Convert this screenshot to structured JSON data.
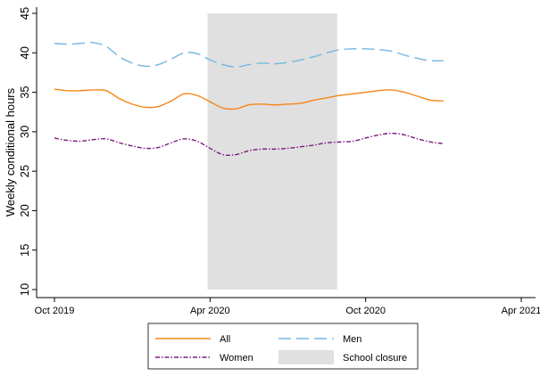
{
  "chart_data": {
    "type": "line",
    "xlabel": "",
    "ylabel": "Weekly conditional hours",
    "ylim": [
      10,
      45
    ],
    "yticks": [
      10,
      15,
      20,
      25,
      30,
      35,
      40,
      45
    ],
    "xlim": [
      "2019-10",
      "2021-04"
    ],
    "xticks": [
      {
        "value": "2019-10",
        "label": "Oct 2019"
      },
      {
        "value": "2020-04",
        "label": "Apr 2020"
      },
      {
        "value": "2020-10",
        "label": "Oct 2020"
      },
      {
        "value": "2021-04",
        "label": "Apr 2021"
      }
    ],
    "grid": false,
    "legend_position": "bottom",
    "shaded_region": {
      "name": "School closure",
      "start": "2020-03.9",
      "end": "2020-08.9",
      "color": "#e0e0e0"
    },
    "series": [
      {
        "name": "All",
        "color": "#f58518",
        "dash": "solid",
        "points": [
          [
            "2019-10",
            35.4
          ],
          [
            "2019-10.5",
            35.2
          ],
          [
            "2019-11",
            35.2
          ],
          [
            "2019-11.5",
            35.3
          ],
          [
            "2019-12",
            35.2
          ],
          [
            "2019-12.5",
            34.2
          ],
          [
            "2020-01",
            33.5
          ],
          [
            "2020-01.5",
            33.1
          ],
          [
            "2020-02",
            33.2
          ],
          [
            "2020-02.5",
            33.9
          ],
          [
            "2020-03",
            34.8
          ],
          [
            "2020-03.5",
            34.6
          ],
          [
            "2020-04",
            33.8
          ],
          [
            "2020-04.5",
            33.0
          ],
          [
            "2020-05",
            32.9
          ],
          [
            "2020-05.5",
            33.4
          ],
          [
            "2020-06",
            33.5
          ],
          [
            "2020-06.5",
            33.4
          ],
          [
            "2020-07",
            33.5
          ],
          [
            "2020-07.5",
            33.6
          ],
          [
            "2020-08",
            34.0
          ],
          [
            "2020-08.5",
            34.3
          ],
          [
            "2020-09",
            34.6
          ],
          [
            "2020-09.5",
            34.8
          ],
          [
            "2020-10",
            35.0
          ],
          [
            "2020-10.5",
            35.2
          ],
          [
            "2020-11",
            35.3
          ],
          [
            "2020-11.5",
            35.0
          ],
          [
            "2020-12",
            34.5
          ],
          [
            "2020-12.5",
            34.0
          ],
          [
            "2021-01",
            33.9
          ]
        ]
      },
      {
        "name": "Men",
        "color": "#72b7e0",
        "dash": "long-dash",
        "points": [
          [
            "2019-10",
            41.2
          ],
          [
            "2019-10.5",
            41.1
          ],
          [
            "2019-11",
            41.2
          ],
          [
            "2019-11.5",
            41.3
          ],
          [
            "2019-12",
            40.8
          ],
          [
            "2019-12.5",
            39.5
          ],
          [
            "2020-01",
            38.7
          ],
          [
            "2020-01.5",
            38.3
          ],
          [
            "2020-02",
            38.5
          ],
          [
            "2020-02.5",
            39.2
          ],
          [
            "2020-03",
            40.0
          ],
          [
            "2020-03.5",
            39.9
          ],
          [
            "2020-04",
            39.1
          ],
          [
            "2020-04.5",
            38.5
          ],
          [
            "2020-05",
            38.2
          ],
          [
            "2020-05.5",
            38.5
          ],
          [
            "2020-06",
            38.7
          ],
          [
            "2020-06.5",
            38.6
          ],
          [
            "2020-07",
            38.8
          ],
          [
            "2020-07.5",
            39.1
          ],
          [
            "2020-08",
            39.5
          ],
          [
            "2020-08.5",
            40.0
          ],
          [
            "2020-09",
            40.4
          ],
          [
            "2020-09.5",
            40.5
          ],
          [
            "2020-10",
            40.5
          ],
          [
            "2020-10.5",
            40.4
          ],
          [
            "2020-11",
            40.2
          ],
          [
            "2020-11.5",
            39.7
          ],
          [
            "2020-12",
            39.3
          ],
          [
            "2020-12.5",
            39.0
          ],
          [
            "2021-01",
            39.0
          ]
        ]
      },
      {
        "name": "Women",
        "color": "#7b1a7f",
        "dash": "dash-dot",
        "points": [
          [
            "2019-10",
            29.2
          ],
          [
            "2019-10.5",
            28.9
          ],
          [
            "2019-11",
            28.8
          ],
          [
            "2019-11.5",
            29.0
          ],
          [
            "2019-12",
            29.1
          ],
          [
            "2019-12.5",
            28.6
          ],
          [
            "2020-01",
            28.2
          ],
          [
            "2020-01.5",
            27.9
          ],
          [
            "2020-02",
            28.0
          ],
          [
            "2020-02.5",
            28.6
          ],
          [
            "2020-03",
            29.1
          ],
          [
            "2020-03.5",
            28.8
          ],
          [
            "2020-04",
            27.9
          ],
          [
            "2020-04.5",
            27.1
          ],
          [
            "2020-05",
            27.1
          ],
          [
            "2020-05.5",
            27.6
          ],
          [
            "2020-06",
            27.8
          ],
          [
            "2020-06.5",
            27.8
          ],
          [
            "2020-07",
            27.9
          ],
          [
            "2020-07.5",
            28.1
          ],
          [
            "2020-08",
            28.3
          ],
          [
            "2020-08.5",
            28.6
          ],
          [
            "2020-09",
            28.7
          ],
          [
            "2020-09.5",
            28.8
          ],
          [
            "2020-10",
            29.2
          ],
          [
            "2020-10.5",
            29.6
          ],
          [
            "2020-11",
            29.8
          ],
          [
            "2020-11.5",
            29.6
          ],
          [
            "2020-12",
            29.1
          ],
          [
            "2020-12.5",
            28.7
          ],
          [
            "2021-01",
            28.5
          ]
        ]
      }
    ]
  },
  "legend": {
    "items": [
      {
        "label": "All",
        "series": "All"
      },
      {
        "label": "Men",
        "series": "Men"
      },
      {
        "label": "Women",
        "series": "Women"
      },
      {
        "label": "School closure",
        "series": "shade"
      }
    ]
  }
}
